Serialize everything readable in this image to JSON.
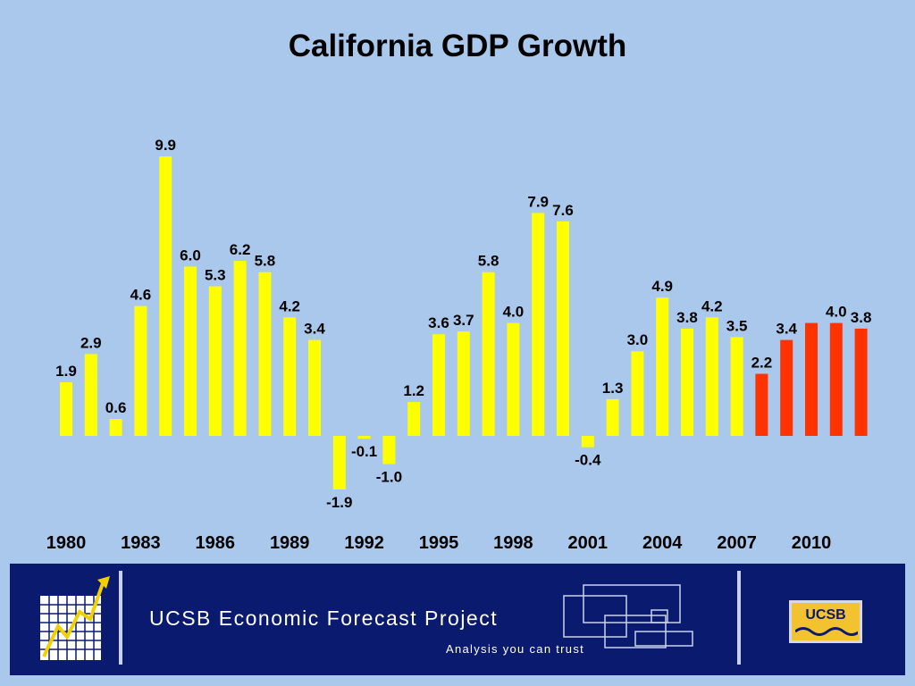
{
  "title": "California GDP Growth",
  "chart_data": {
    "type": "bar",
    "title": "California GDP Growth",
    "xlabel": "",
    "ylabel": "",
    "ylim": [
      -2.0,
      9.9
    ],
    "grid": false,
    "x": [
      1980,
      1981,
      1982,
      1983,
      1984,
      1985,
      1986,
      1987,
      1988,
      1989,
      1990,
      1991,
      1992,
      1993,
      1994,
      1995,
      1996,
      1997,
      1998,
      1999,
      2000,
      2001,
      2002,
      2003,
      2004,
      2005,
      2006,
      2007,
      2008,
      2009,
      2010,
      2011,
      2012
    ],
    "values": [
      1.9,
      2.9,
      0.6,
      4.6,
      9.9,
      6.0,
      5.3,
      6.2,
      5.8,
      4.2,
      3.4,
      -1.9,
      -0.1,
      -1.0,
      1.2,
      3.6,
      3.7,
      5.8,
      4.0,
      7.9,
      7.6,
      -0.4,
      1.3,
      3.0,
      4.9,
      3.8,
      4.2,
      3.5,
      2.2,
      3.4,
      4.0,
      4.0,
      3.8
    ],
    "labels": [
      "1.9",
      "2.9",
      "0.6",
      "4.6",
      "9.9",
      "6.0",
      "5.3",
      "6.2",
      "5.8",
      "4.2",
      "3.4",
      "-1.9",
      "-0.1",
      "-1.0",
      "1.2",
      "3.6",
      "3.7",
      "5.8",
      "4.0",
      "7.9",
      "7.6",
      "-0.4",
      "1.3",
      "3.0",
      "4.9",
      "3.8",
      "4.2",
      "3.5",
      "2.2",
      "3.4",
      "",
      "4.0",
      "3.8"
    ],
    "bar_colors": [
      "#ffff00",
      "#ffff00",
      "#ffff00",
      "#ffff00",
      "#ffff00",
      "#ffff00",
      "#ffff00",
      "#ffff00",
      "#ffff00",
      "#ffff00",
      "#ffff00",
      "#ffff00",
      "#ffff00",
      "#ffff00",
      "#ffff00",
      "#ffff00",
      "#ffff00",
      "#ffff00",
      "#ffff00",
      "#ffff00",
      "#ffff00",
      "#ffff00",
      "#ffff00",
      "#ffff00",
      "#ffff00",
      "#ffff00",
      "#ffff00",
      "#ffff00",
      "#ff3300",
      "#ff3300",
      "#ff3300",
      "#ff3300",
      "#ff3300"
    ],
    "x_ticks": [
      "1980",
      "1983",
      "1986",
      "1989",
      "1992",
      "1995",
      "1998",
      "2001",
      "2004",
      "2007",
      "2010"
    ]
  },
  "colors": {
    "background": "#a9c8ec",
    "actual": "#ffff00",
    "forecast": "#ff3300",
    "footer": "#0a1a6e"
  },
  "footer": {
    "brand": "UCSB Economic Forecast Project",
    "tagline": "Analysis you can trust",
    "badge": "UCSB",
    "logo_icon": "rising-chart-icon"
  }
}
